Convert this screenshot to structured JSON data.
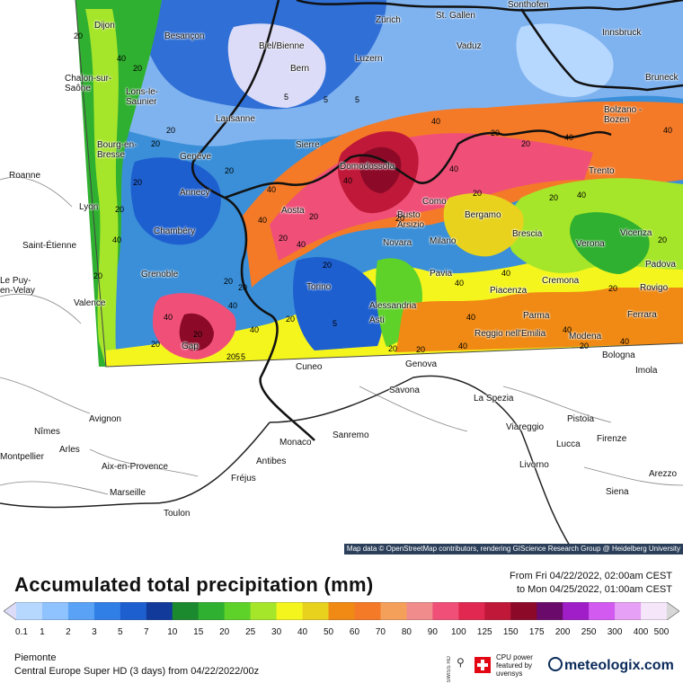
{
  "map": {
    "attribution": "Map data © OpenStreetMap contributors, rendering GIScience Research Group @ Heidelberg University",
    "cities": [
      "Dijon",
      "Besançon",
      "Biel/Bienne",
      "Zürich",
      "St. Gallen",
      "Sonthofen",
      "Innsbruck",
      "Vaduz",
      "Luzern",
      "Bern",
      "Chalon-sur-Saône",
      "Lons-le-Saunier",
      "Lausanne",
      "Bruneck",
      "Bolzano - Bozen",
      "Bourg-en-Bresse",
      "Genève",
      "Sierre",
      "Domodossola",
      "Trento",
      "Roanne",
      "Annecy",
      "Aosta",
      "Como",
      "Busto Arsizio",
      "Bergamo",
      "Lyon",
      "Vicenza",
      "Chambéry",
      "Novara",
      "Milano",
      "Brescia",
      "Verona",
      "Saint-Étienne",
      "Padova",
      "Grenoble",
      "Pavia",
      "Cremona",
      "Rovigo",
      "Le Puy-en-Velay",
      "Torino",
      "Piacenza",
      "Valence",
      "Alessandria",
      "Parma",
      "Ferrara",
      "Asti",
      "Reggio nell'Emilia",
      "Modena",
      "Gap",
      "Cuneo",
      "Genova",
      "Bologna",
      "Imola",
      "Savona",
      "La Spezia",
      "Avignon",
      "Pistoia",
      "Nîmes",
      "Viareggio",
      "Sanremo",
      "Monaco",
      "Lucca",
      "Firenze",
      "Arles",
      "Montpellier",
      "Antibes",
      "Aix-en-Provence",
      "Livorno",
      "Arezzo",
      "Fréjus",
      "Marseille",
      "Siena",
      "Toulon"
    ],
    "contour_values": [
      "20",
      "40",
      "20",
      "5",
      "20",
      "5",
      "5",
      "40",
      "20",
      "40",
      "20",
      "20",
      "40",
      "40",
      "20",
      "40",
      "20",
      "40",
      "20",
      "20",
      "40",
      "20",
      "20",
      "40",
      "20",
      "40",
      "20",
      "40",
      "20",
      "40",
      "20",
      "20",
      "20",
      "40",
      "20",
      "40",
      "20",
      "40",
      "5",
      "40",
      "40",
      "20",
      "40",
      "20",
      "20",
      "205",
      "5",
      "20",
      "40",
      "20",
      "40",
      "20"
    ]
  },
  "legend": {
    "title": "Accumulated total precipitation (mm)",
    "period_from": "From Fri 04/22/2022, 02:00am CEST",
    "period_to": "to Mon 04/25/2022, 01:00am CEST",
    "ticks": [
      "0.1",
      "1",
      "2",
      "3",
      "5",
      "7",
      "10",
      "15",
      "20",
      "25",
      "30",
      "40",
      "50",
      "60",
      "70",
      "80",
      "90",
      "100",
      "125",
      "150",
      "175",
      "200",
      "250",
      "300",
      "400",
      "500"
    ],
    "colors": [
      "#dcdcf8",
      "#b6d8ff",
      "#8ec3ff",
      "#5aa2f5",
      "#2f7fe6",
      "#1e5fd0",
      "#123a9a",
      "#1b8a2e",
      "#30b030",
      "#5fd22a",
      "#a6e62a",
      "#f5f51e",
      "#e8d21e",
      "#f08a14",
      "#f47a28",
      "#f5a05a",
      "#f08c8c",
      "#f05078",
      "#e02850",
      "#c01838",
      "#8c0a28",
      "#6a0a6a",
      "#a01ec8",
      "#d25af0",
      "#e6a0f5",
      "#f5e6fa",
      "#d7d7d7"
    ]
  },
  "footer": {
    "region": "Piemonte",
    "model": "Central Europe Super HD (3 days)  from  04/22/2022/00z",
    "swiss_hd": "SWISS HD",
    "cpu_text": [
      "CPU power",
      "featured by",
      "uvensys"
    ],
    "brand": "meteologix.com"
  }
}
